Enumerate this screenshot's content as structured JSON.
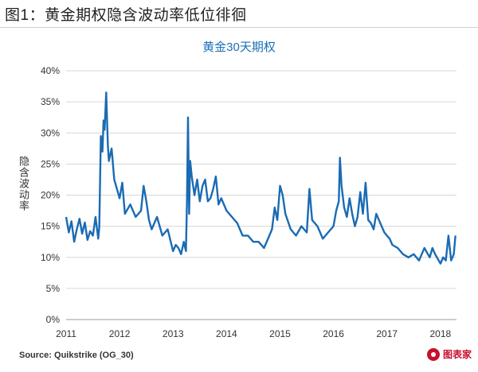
{
  "figure": {
    "title": "图1：黄金期权隐含波动率低位徘徊",
    "source": "Source: Quikstrike (OG_30)",
    "brand_text": "图表家"
  },
  "chart_data": {
    "type": "line",
    "title": "黄金30天期权",
    "ylabel": "隐含波动率",
    "xlabel": "",
    "x_ticks": [
      "2011",
      "2012",
      "2013",
      "2014",
      "2015",
      "2016",
      "2017",
      "2018"
    ],
    "y_ticks": [
      "0%",
      "5%",
      "10%",
      "15%",
      "20%",
      "25%",
      "30%",
      "35%",
      "40%"
    ],
    "xlim": [
      2011.0,
      2018.3
    ],
    "ylim": [
      0,
      40
    ],
    "grid": true,
    "color": "#1a6bb3",
    "series": [
      {
        "x": [
          2011.0,
          2011.05,
          2011.1,
          2011.15,
          2011.2,
          2011.25,
          2011.3,
          2011.35,
          2011.4,
          2011.45,
          2011.5,
          2011.55,
          2011.6,
          2011.62,
          2011.65,
          2011.68,
          2011.7,
          2011.72,
          2011.75,
          2011.78,
          2011.8,
          2011.85,
          2011.9,
          2011.95,
          2012.0,
          2012.05,
          2012.1,
          2012.2,
          2012.3,
          2012.4,
          2012.45,
          2012.5,
          2012.55,
          2012.6,
          2012.7,
          2012.8,
          2012.9,
          2013.0,
          2013.05,
          2013.1,
          2013.15,
          2013.2,
          2013.24,
          2013.26,
          2013.28,
          2013.3,
          2013.32,
          2013.35,
          2013.4,
          2013.45,
          2013.5,
          2013.55,
          2013.6,
          2013.65,
          2013.7,
          2013.75,
          2013.8,
          2013.85,
          2013.9,
          2014.0,
          2014.1,
          2014.2,
          2014.3,
          2014.4,
          2014.5,
          2014.6,
          2014.7,
          2014.8,
          2014.85,
          2014.9,
          2014.95,
          2015.0,
          2015.05,
          2015.1,
          2015.2,
          2015.3,
          2015.4,
          2015.5,
          2015.55,
          2015.6,
          2015.7,
          2015.8,
          2015.9,
          2016.0,
          2016.05,
          2016.1,
          2016.12,
          2016.15,
          2016.2,
          2016.25,
          2016.3,
          2016.35,
          2016.4,
          2016.45,
          2016.5,
          2016.55,
          2016.6,
          2016.65,
          2016.7,
          2016.75,
          2016.8,
          2016.85,
          2016.9,
          2016.95,
          2017.0,
          2017.05,
          2017.1,
          2017.2,
          2017.3,
          2017.4,
          2017.5,
          2017.6,
          2017.7,
          2017.8,
          2017.85,
          2017.9,
          2018.0,
          2018.05,
          2018.1,
          2018.15,
          2018.2,
          2018.25,
          2018.28
        ],
        "y": [
          16.5,
          14.0,
          15.8,
          12.5,
          14.5,
          16.2,
          13.8,
          15.6,
          12.8,
          14.2,
          13.5,
          16.5,
          13.0,
          14.8,
          29.5,
          27.0,
          32.0,
          30.5,
          36.5,
          28.0,
          25.5,
          27.5,
          22.5,
          21.0,
          19.5,
          22.0,
          17.0,
          18.5,
          16.5,
          17.5,
          21.5,
          19.0,
          16.0,
          14.5,
          16.5,
          13.5,
          14.5,
          11.0,
          12.0,
          11.5,
          10.5,
          12.5,
          11.0,
          19.0,
          32.5,
          17.0,
          25.5,
          23.0,
          20.0,
          22.5,
          19.0,
          21.5,
          22.5,
          19.0,
          19.5,
          21.0,
          23.0,
          18.5,
          19.5,
          17.5,
          16.5,
          15.5,
          13.5,
          13.5,
          12.5,
          12.5,
          11.5,
          13.5,
          14.5,
          18.0,
          16.0,
          21.5,
          20.0,
          17.0,
          14.5,
          13.5,
          15.0,
          14.0,
          21.0,
          16.0,
          15.0,
          13.0,
          14.0,
          15.0,
          17.5,
          19.0,
          26.0,
          21.5,
          18.0,
          16.5,
          19.5,
          17.0,
          15.0,
          16.5,
          20.5,
          17.0,
          22.0,
          16.0,
          15.5,
          14.5,
          17.0,
          16.0,
          15.0,
          14.0,
          13.5,
          13.0,
          12.0,
          11.5,
          10.5,
          10.0,
          10.5,
          9.5,
          11.5,
          10.0,
          11.5,
          10.5,
          9.0,
          10.0,
          9.5,
          13.5,
          9.5,
          10.5,
          13.5
        ]
      }
    ]
  }
}
